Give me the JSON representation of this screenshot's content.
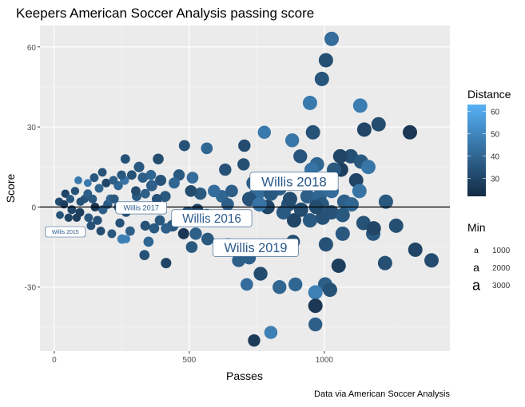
{
  "chart_data": {
    "type": "scatter",
    "title": "Keepers American Soccer Analysis passing score",
    "xlabel": "Passes",
    "ylabel": "Score",
    "caption": "Data via American Soccer Analysis",
    "xlim": [
      -53,
      1465
    ],
    "ylim": [
      -54,
      68
    ],
    "xticks": [
      0,
      500,
      1000
    ],
    "yticks": [
      -30,
      0,
      30,
      60
    ],
    "xminor": [
      250,
      750,
      1250
    ],
    "yminor": [
      -45,
      -15,
      15,
      45
    ],
    "hline": 0,
    "grid": true,
    "color_legend": {
      "title": "Distance",
      "ticks": [
        30,
        40,
        50,
        60
      ],
      "range": [
        22,
        63
      ],
      "low": "#132B43",
      "high": "#56B1F7"
    },
    "size_legend": {
      "title": "Min",
      "entries": [
        1000,
        2000,
        3000
      ],
      "glyph": "a"
    },
    "point_columns": [
      "passes",
      "score",
      "distance",
      "minutes"
    ],
    "points": [
      [
        1027,
        63,
        42,
        3000
      ],
      [
        1006,
        55,
        33,
        3000
      ],
      [
        991,
        48,
        35,
        3000
      ],
      [
        947,
        39,
        46,
        3000
      ],
      [
        1133,
        38,
        47,
        3000
      ],
      [
        1201,
        31,
        32,
        3000
      ],
      [
        1317,
        28,
        26,
        3000
      ],
      [
        1148,
        29,
        30,
        3000
      ],
      [
        778,
        28,
        46,
        2500
      ],
      [
        958,
        28,
        34,
        3000
      ],
      [
        881,
        25,
        45,
        2800
      ],
      [
        911,
        19,
        35,
        2800
      ],
      [
        1098,
        19,
        33,
        3000
      ],
      [
        1136,
        17,
        36,
        3000
      ],
      [
        973,
        16,
        40,
        3000
      ],
      [
        953,
        14,
        44,
        3000
      ],
      [
        1163,
        15,
        45,
        3000
      ],
      [
        704,
        23,
        32,
        2200
      ],
      [
        701,
        16,
        33,
        2200
      ],
      [
        633,
        14,
        34,
        2200
      ],
      [
        737,
        9,
        38,
        2800
      ],
      [
        799,
        8,
        40,
        2800
      ],
      [
        908,
        10,
        42,
        3000
      ],
      [
        1118,
        10,
        30,
        3000
      ],
      [
        1130,
        6,
        44,
        3000
      ],
      [
        1228,
        2,
        36,
        3000
      ],
      [
        1074,
        2,
        38,
        3000
      ],
      [
        1059,
        19,
        30,
        3000
      ],
      [
        1062,
        14,
        28,
        3000
      ],
      [
        1036,
        14,
        36,
        3000
      ],
      [
        1397,
        -20,
        32,
        3000
      ],
      [
        1337,
        -16,
        30,
        3000
      ],
      [
        1225,
        -21,
        33,
        3000
      ],
      [
        1181,
        -10,
        36,
        3000
      ],
      [
        1266,
        -7,
        33,
        3000
      ],
      [
        1145,
        -6,
        34,
        3000
      ],
      [
        1183,
        -8,
        30,
        3000
      ],
      [
        1068,
        -10,
        36,
        3000
      ],
      [
        1006,
        -14,
        34,
        3000
      ],
      [
        1053,
        -22,
        28,
        3000
      ],
      [
        1003,
        -29,
        38,
        3000
      ],
      [
        1021,
        -31,
        34,
        3000
      ],
      [
        967,
        -32,
        48,
        3000
      ],
      [
        967,
        -37,
        26,
        3000
      ],
      [
        967,
        -44,
        38,
        2800
      ],
      [
        802,
        -47,
        48,
        2500
      ],
      [
        740,
        -50,
        27,
        2200
      ],
      [
        834,
        -30,
        40,
        2800
      ],
      [
        893,
        -29,
        40,
        2800
      ],
      [
        713,
        -29,
        42,
        2300
      ],
      [
        764,
        -25,
        32,
        2800
      ],
      [
        867,
        -15,
        34,
        2800
      ],
      [
        884,
        -13,
        32,
        2800
      ],
      [
        722,
        -19,
        38,
        2600
      ],
      [
        683,
        -20,
        38,
        2600
      ],
      [
        642,
        -14,
        40,
        2300
      ],
      [
        568,
        -12,
        36,
        2300
      ],
      [
        524,
        -10,
        38,
        2200
      ],
      [
        509,
        -15,
        36,
        2000
      ],
      [
        867,
        1,
        34,
        3000
      ],
      [
        914,
        -1,
        32,
        3000
      ],
      [
        888,
        -5,
        30,
        3000
      ],
      [
        947,
        -5,
        36,
        3000
      ],
      [
        994,
        -4,
        34,
        3000
      ],
      [
        873,
        3,
        32,
        3000
      ],
      [
        834,
        7,
        38,
        3000
      ],
      [
        743,
        4,
        40,
        3000
      ],
      [
        790,
        0,
        30,
        3000
      ],
      [
        849,
        -2,
        36,
        3000
      ],
      [
        752,
        5,
        42,
        3000
      ],
      [
        802,
        5,
        36,
        3000
      ],
      [
        722,
        3,
        34,
        3000
      ],
      [
        760,
        1,
        44,
        3000
      ],
      [
        938,
        4,
        38,
        3000
      ],
      [
        982,
        4,
        40,
        3000
      ],
      [
        1027,
        6,
        42,
        3000
      ],
      [
        991,
        1,
        36,
        3000
      ],
      [
        970,
        0,
        32,
        3000
      ],
      [
        1101,
        1,
        40,
        3000
      ],
      [
        1027,
        -2,
        34,
        3000
      ],
      [
        1068,
        -3,
        36,
        3000
      ],
      [
        621,
        4,
        40,
        2300
      ],
      [
        657,
        6,
        38,
        2300
      ],
      [
        592,
        6,
        42,
        2300
      ],
      [
        541,
        5,
        36,
        2200
      ],
      [
        642,
        1,
        38,
        2300
      ],
      [
        530,
        -1,
        30,
        2000
      ],
      [
        494,
        -2,
        34,
        2000
      ],
      [
        438,
        -7,
        36,
        2000
      ],
      [
        565,
        -3,
        40,
        2200
      ],
      [
        479,
        -10,
        26,
        1800
      ],
      [
        506,
        6,
        32,
        2000
      ],
      [
        512,
        11,
        42,
        2000
      ],
      [
        462,
        12,
        36,
        1900
      ],
      [
        394,
        10,
        34,
        1800
      ],
      [
        361,
        8,
        38,
        1800
      ],
      [
        444,
        9,
        40,
        1800
      ],
      [
        411,
        4,
        36,
        1700
      ],
      [
        565,
        22,
        40,
        2000
      ],
      [
        482,
        23,
        34,
        1800
      ],
      [
        385,
        18,
        32,
        1700
      ],
      [
        314,
        15,
        36,
        1600
      ],
      [
        263,
        18,
        34,
        1300
      ],
      [
        358,
        12,
        40,
        1500
      ],
      [
        328,
        11,
        38,
        1500
      ],
      [
        391,
        -5,
        36,
        1500
      ],
      [
        337,
        -7,
        34,
        1400
      ],
      [
        370,
        -8,
        36,
        1500
      ],
      [
        414,
        -8,
        38,
        1600
      ],
      [
        349,
        -13,
        40,
        1500
      ],
      [
        334,
        -18,
        34,
        1500
      ],
      [
        414,
        -21,
        30,
        1600
      ],
      [
        251,
        -12,
        48,
        1300
      ],
      [
        281,
        -9,
        38,
        1300
      ],
      [
        322,
        0,
        40,
        1400
      ],
      [
        380,
        3,
        34,
        1500
      ],
      [
        178,
        13,
        34,
        1100
      ],
      [
        148,
        11,
        36,
        1100
      ],
      [
        192,
        9,
        30,
        1100
      ],
      [
        89,
        10,
        46,
        900
      ],
      [
        124,
        9,
        46,
        900
      ],
      [
        77,
        6,
        34,
        1000
      ],
      [
        41,
        5,
        30,
        1000
      ],
      [
        18,
        2,
        32,
        1000
      ],
      [
        36,
        1,
        28,
        1000
      ],
      [
        65,
        -1,
        30,
        1100
      ],
      [
        95,
        -2,
        28,
        1100
      ],
      [
        127,
        -4,
        36,
        1100
      ],
      [
        160,
        -5,
        34,
        1200
      ],
      [
        180,
        -1,
        38,
        1200
      ],
      [
        198,
        1,
        36,
        1200
      ],
      [
        237,
        0,
        38,
        1200
      ],
      [
        266,
        -2,
        34,
        1200
      ],
      [
        208,
        3,
        40,
        1200
      ],
      [
        151,
        0,
        26,
        1100
      ],
      [
        112,
        3,
        34,
        1000
      ],
      [
        59,
        3,
        36,
        1000
      ],
      [
        21,
        -3,
        34,
        900
      ],
      [
        53,
        -4,
        30,
        1000
      ],
      [
        83,
        -4,
        28,
        1000
      ],
      [
        136,
        -7,
        34,
        1100
      ],
      [
        172,
        -9,
        32,
        1100
      ],
      [
        213,
        -10,
        36,
        1100
      ],
      [
        266,
        -12,
        48,
        1000
      ],
      [
        243,
        -6,
        34,
        1200
      ],
      [
        305,
        4,
        36,
        1300
      ],
      [
        302,
        6,
        32,
        1300
      ],
      [
        337,
        5,
        38,
        1300
      ],
      [
        237,
        8,
        40,
        1200
      ],
      [
        222,
        3,
        36,
        1200
      ],
      [
        260,
        10,
        44,
        1200
      ],
      [
        249,
        12,
        36,
        1200
      ],
      [
        219,
        10,
        38,
        1100
      ],
      [
        287,
        12,
        34,
        1300
      ],
      [
        166,
        7,
        40,
        1100
      ],
      [
        124,
        5,
        38,
        1100
      ],
      [
        142,
        3,
        36,
        1100
      ],
      [
        97,
        2,
        34,
        1000
      ]
    ],
    "labels": [
      {
        "text": "Willis 2015",
        "passes": 41,
        "score": -9.3,
        "minutes": 1000
      },
      {
        "text": "Willis 2017",
        "passes": 322,
        "score": -0.3,
        "minutes": 1400
      },
      {
        "text": "Willis 2016",
        "passes": 583,
        "score": -4.2,
        "minutes": 2500
      },
      {
        "text": "Willis 2018",
        "passes": 888,
        "score": 9.6,
        "minutes": 2800
      },
      {
        "text": "Willis 2019",
        "passes": 746,
        "score": -15.2,
        "minutes": 2700
      }
    ]
  }
}
